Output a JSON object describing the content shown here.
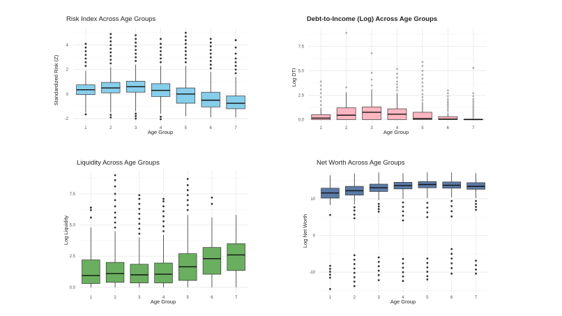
{
  "chart_data": [
    {
      "type": "boxplot",
      "title": "Risk Index Across Age Groups",
      "title_bold": false,
      "xlabel": "Age Group",
      "ylabel": "Standardized Risk (Z)",
      "categories": [
        "1",
        "2",
        "3",
        "4",
        "5",
        "6",
        "7"
      ],
      "yticks": [
        -2,
        0,
        2,
        4
      ],
      "ylim": [
        -2.4,
        5.4
      ],
      "fill_color": "#87CEEB",
      "outlier_color": "#1a1a1a",
      "outlier_opacity": 0.9,
      "boxes": [
        {
          "min": -1.5,
          "q1": -0.05,
          "median": 0.35,
          "q3": 0.75,
          "max": 1.9,
          "outliers": [
            -1.65,
            2.3,
            2.6,
            2.9,
            3.2,
            3.5,
            3.8,
            4.1
          ]
        },
        {
          "min": -1.5,
          "q1": 0.1,
          "median": 0.5,
          "q3": 0.95,
          "max": 2.2,
          "outliers": [
            -1.7,
            -1.9,
            2.5,
            2.8,
            3.1,
            3.4,
            3.7,
            4.0,
            4.3,
            4.6,
            4.9
          ]
        },
        {
          "min": -1.4,
          "q1": 0.15,
          "median": 0.6,
          "q3": 1.05,
          "max": 2.4,
          "outliers": [
            -1.6,
            -1.8,
            -2.0,
            2.7,
            3.0,
            3.3,
            3.6,
            3.9,
            4.2,
            4.5,
            4.8
          ]
        },
        {
          "min": -1.6,
          "q1": -0.2,
          "median": 0.3,
          "q3": 0.85,
          "max": 2.3,
          "outliers": [
            -1.85,
            -2.05,
            2.6,
            2.9,
            3.2,
            3.5,
            3.8,
            4.1,
            4.5
          ]
        },
        {
          "min": -1.8,
          "q1": -0.75,
          "median": 0.0,
          "q3": 0.5,
          "max": 2.3,
          "outliers": [
            2.6,
            2.9,
            3.2,
            3.5,
            3.8,
            4.1,
            4.4,
            4.7,
            5.0
          ]
        },
        {
          "min": -1.9,
          "q1": -1.05,
          "median": -0.5,
          "q3": 0.15,
          "max": 1.8,
          "outliers": [
            2.1,
            2.4,
            2.7,
            3.0,
            3.3,
            3.6,
            3.9,
            4.2,
            4.5
          ]
        },
        {
          "min": -1.9,
          "q1": -1.2,
          "median": -0.75,
          "q3": -0.15,
          "max": 1.4,
          "outliers": [
            1.7,
            2.0,
            2.3,
            2.6,
            2.9,
            3.3,
            3.8,
            4.4
          ]
        }
      ]
    },
    {
      "type": "boxplot",
      "title": "Debt-to-Income (Log) Across Age Groups",
      "title_bold": true,
      "xlabel": "Age Group",
      "ylabel": "Log DTI",
      "categories": [
        "1",
        "2",
        "3",
        "4",
        "5",
        "6",
        "7"
      ],
      "yticks": [
        0.0,
        2.5,
        5.0,
        7.5
      ],
      "ylim": [
        -0.4,
        9.4
      ],
      "fill_color": "#FFB6C1",
      "outlier_color": "#555555",
      "outlier_opacity": 0.45,
      "boxes": [
        {
          "min": 0.0,
          "q1": 0.0,
          "median": 0.15,
          "q3": 0.5,
          "max": 1.2,
          "outliers": [
            1.5,
            1.9,
            2.3,
            2.7,
            3.1,
            3.5,
            3.9
          ]
        },
        {
          "min": 0.0,
          "q1": 0.0,
          "median": 0.45,
          "q3": 1.2,
          "max": 2.8,
          "outliers": [
            3.3,
            8.9
          ]
        },
        {
          "min": 0.0,
          "q1": 0.0,
          "median": 0.75,
          "q3": 1.3,
          "max": 3.1,
          "outliers": [
            3.5,
            4.1,
            4.8,
            6.8
          ]
        },
        {
          "min": 0.0,
          "q1": 0.0,
          "median": 0.55,
          "q3": 1.1,
          "max": 2.7,
          "outliers": [
            3.0,
            3.3,
            3.6,
            3.9,
            4.3,
            4.7,
            5.2
          ]
        },
        {
          "min": 0.0,
          "q1": 0.0,
          "median": 0.1,
          "q3": 0.75,
          "max": 1.8,
          "outliers": [
            2.0,
            2.3,
            2.6,
            3.0,
            3.4,
            3.8,
            4.2,
            4.6,
            5.0,
            5.5,
            5.9
          ]
        },
        {
          "min": 0.0,
          "q1": 0.0,
          "median": 0.05,
          "q3": 0.3,
          "max": 0.7,
          "outliers": [
            0.9,
            1.1,
            1.3,
            1.5,
            1.7,
            1.9,
            2.1,
            2.4,
            2.7,
            3.0
          ]
        },
        {
          "min": 0.0,
          "q1": 0.0,
          "median": 0.0,
          "q3": 0.05,
          "max": 0.15,
          "outliers": [
            0.3,
            0.5,
            0.7,
            0.9,
            1.1,
            1.3,
            1.5,
            1.7,
            1.9,
            2.1,
            2.4,
            2.7,
            5.3
          ]
        }
      ]
    },
    {
      "type": "boxplot",
      "title": "Liquidity Across Age Groups",
      "title_bold": false,
      "xlabel": "Age Group",
      "ylabel": "Log Liquidity",
      "categories": [
        "1",
        "2",
        "3",
        "4",
        "5",
        "6",
        "7"
      ],
      "yticks": [
        0.0,
        2.5,
        5.0,
        7.5
      ],
      "ylim": [
        -0.4,
        9.4
      ],
      "fill_color": "#6AAF5F",
      "outlier_color": "#1a1a1a",
      "outlier_opacity": 0.9,
      "boxes": [
        {
          "min": 0.0,
          "q1": 0.3,
          "median": 0.95,
          "q3": 2.2,
          "max": 4.8,
          "outliers": [
            5.6,
            6.2,
            6.4
          ]
        },
        {
          "min": 0.0,
          "q1": 0.4,
          "median": 1.1,
          "q3": 2.0,
          "max": 4.5,
          "outliers": [
            4.8,
            5.2,
            5.6,
            6.0,
            6.5,
            7.0,
            7.5,
            8.1,
            8.6,
            9.0
          ]
        },
        {
          "min": 0.0,
          "q1": 0.35,
          "median": 1.0,
          "q3": 1.85,
          "max": 4.0,
          "outliers": [
            4.3,
            4.7,
            5.1,
            5.5,
            5.9,
            6.3,
            6.7,
            7.1,
            7.4
          ]
        },
        {
          "min": 0.0,
          "q1": 0.35,
          "median": 1.05,
          "q3": 1.95,
          "max": 4.2,
          "outliers": [
            4.5,
            4.9,
            5.3,
            5.7,
            6.1,
            6.5,
            6.9,
            7.1
          ]
        },
        {
          "min": 0.0,
          "q1": 0.55,
          "median": 1.65,
          "q3": 2.7,
          "max": 5.8,
          "outliers": [
            6.2,
            6.6,
            7.0,
            7.4,
            7.8,
            8.2,
            8.7
          ]
        },
        {
          "min": 0.0,
          "q1": 1.05,
          "median": 2.3,
          "q3": 3.2,
          "max": 5.6,
          "outliers": [
            6.7,
            7.2
          ]
        },
        {
          "min": 0.0,
          "q1": 1.35,
          "median": 2.6,
          "q3": 3.5,
          "max": 5.8,
          "outliers": []
        }
      ]
    },
    {
      "type": "boxplot",
      "title": "Net Worth Across Age Groups",
      "title_bold": false,
      "xlabel": "Age Group",
      "ylabel": "Log Net Worth",
      "categories": [
        "1",
        "2",
        "3",
        "4",
        "5",
        "6",
        "7"
      ],
      "yticks": [
        -10,
        0,
        10
      ],
      "ylim": [
        -15.5,
        17.8
      ],
      "fill_color": "#5B7BA6",
      "outlier_color": "#1a1a1a",
      "outlier_opacity": 0.9,
      "boxes": [
        {
          "min": 8.3,
          "q1": 10.2,
          "median": 11.6,
          "q3": 12.9,
          "max": 16.4,
          "outliers": [
            5.6,
            -8.3,
            -9.1,
            -9.9,
            -10.7,
            -11.5,
            -14.6
          ]
        },
        {
          "min": 8.5,
          "q1": 11.0,
          "median": 12.2,
          "q3": 13.4,
          "max": 16.9,
          "outliers": [
            4.7,
            5.7,
            6.8,
            7.7,
            -5.4,
            -6.6,
            -7.8,
            -9.0,
            -10.2,
            -11.4,
            -12.6,
            -13.8
          ]
        },
        {
          "min": 9.6,
          "q1": 12.0,
          "median": 13.0,
          "q3": 14.0,
          "max": 17.2,
          "outliers": [
            6.5,
            7.2,
            7.9,
            8.6,
            -6.0,
            -7.2,
            -8.4,
            -9.6,
            -10.8,
            -12.2
          ]
        },
        {
          "min": 10.0,
          "q1": 12.7,
          "median": 13.6,
          "q3": 14.5,
          "max": 17.0,
          "outliers": [
            4.1,
            5.4,
            6.6,
            7.8,
            9.0,
            -6.4,
            -7.6,
            -8.8,
            -10.0,
            -11.2,
            -12.4
          ]
        },
        {
          "min": 10.2,
          "q1": 13.0,
          "median": 13.9,
          "q3": 14.7,
          "max": 17.2,
          "outliers": [
            5.0,
            6.3,
            7.6,
            8.9,
            -6.3,
            -7.5,
            -8.7,
            -9.9,
            -11.1,
            -12.0
          ]
        },
        {
          "min": 10.4,
          "q1": 12.9,
          "median": 13.7,
          "q3": 14.6,
          "max": 17.2,
          "outliers": [
            5.2,
            6.6,
            8.0,
            9.4,
            -3.7,
            -5.0,
            -6.3,
            -7.6,
            -8.9,
            -10.4
          ]
        },
        {
          "min": 10.2,
          "q1": 12.6,
          "median": 13.4,
          "q3": 14.4,
          "max": 17.0,
          "outliers": [
            7.0,
            7.8,
            8.6,
            9.4,
            -6.9,
            -8.1,
            -9.3,
            -10.4
          ]
        }
      ]
    }
  ]
}
